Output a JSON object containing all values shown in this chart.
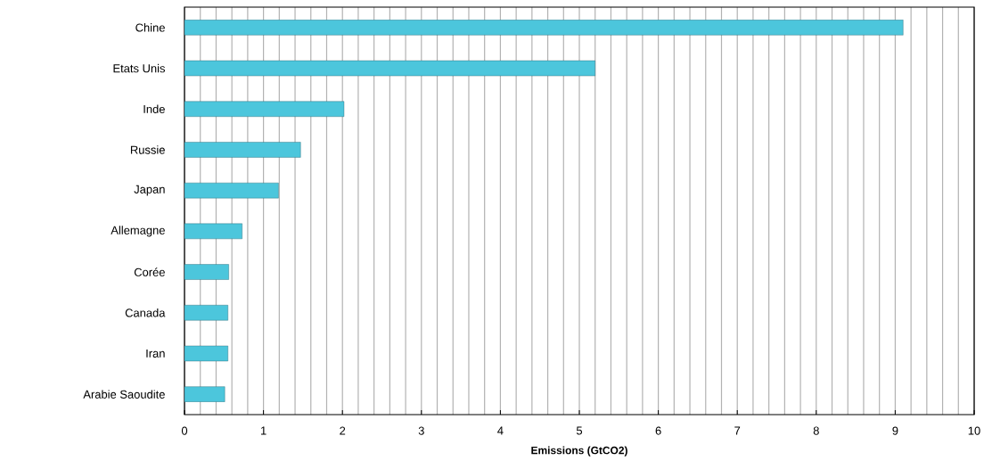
{
  "chart_data": {
    "type": "bar",
    "orientation": "horizontal",
    "xlabel": "Emissions (GtCO2)",
    "categories": [
      "Chine",
      "Etats Unis",
      "Inde",
      "Russie",
      "Japan",
      "Allemagne",
      "Corée",
      "Canada",
      "Iran",
      "Arabie Saoudite"
    ],
    "values": [
      9.1,
      5.2,
      2.02,
      1.47,
      1.19,
      0.73,
      0.56,
      0.55,
      0.55,
      0.51
    ],
    "color": "#4cc6dc",
    "xlim": [
      0,
      10
    ],
    "xticks": [
      0,
      1,
      2,
      3,
      4,
      5,
      6,
      7,
      8,
      9,
      10
    ],
    "grid": "x"
  }
}
